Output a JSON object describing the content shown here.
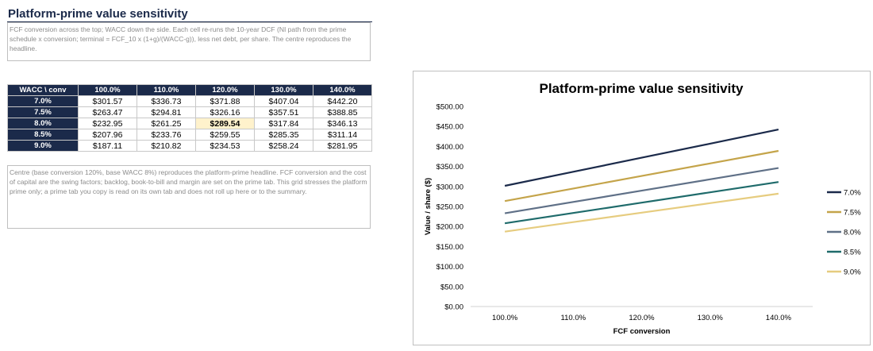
{
  "header": {
    "title": "Platform-prime value sensitivity",
    "note_top": "FCF conversion across the top; WACC down the side. Each cell re-runs the 10-year DCF (NI path from the prime schedule x conversion; terminal = FCF_10 x (1+g)/(WACC-g)), less net debt, per share. The centre reproduces the headline.",
    "note_bottom": "Centre (base conversion 120%, base WACC 8%) reproduces the platform-prime headline. FCF conversion and the cost of capital are the swing factors; backlog, book-to-bill and margin are set on the prime tab. This grid stresses the platform prime only; a prime tab you copy is read on its own tab and does not roll up here or to the summary."
  },
  "table": {
    "corner": "WACC \\ conv",
    "columns": [
      "100.0%",
      "110.0%",
      "120.0%",
      "130.0%",
      "140.0%"
    ],
    "rows": [
      {
        "wacc": "7.0%",
        "cells": [
          "$301.57",
          "$336.73",
          "$371.88",
          "$407.04",
          "$442.20"
        ]
      },
      {
        "wacc": "7.5%",
        "cells": [
          "$263.47",
          "$294.81",
          "$326.16",
          "$357.51",
          "$388.85"
        ]
      },
      {
        "wacc": "8.0%",
        "cells": [
          "$232.95",
          "$261.25",
          "$289.54",
          "$317.84",
          "$346.13"
        ]
      },
      {
        "wacc": "8.5%",
        "cells": [
          "$207.96",
          "$233.76",
          "$259.55",
          "$285.35",
          "$311.14"
        ]
      },
      {
        "wacc": "9.0%",
        "cells": [
          "$187.11",
          "$210.82",
          "$234.53",
          "$258.24",
          "$281.95"
        ]
      }
    ],
    "highlight": {
      "row": 2,
      "col": 2
    }
  },
  "chart_data": {
    "type": "line",
    "title": "Platform-prime value sensitivity",
    "xlabel": "FCF conversion",
    "ylabel": "Value / share ($)",
    "categories": [
      "100.0%",
      "110.0%",
      "120.0%",
      "130.0%",
      "140.0%"
    ],
    "ylim": [
      0,
      500
    ],
    "yticks": [
      "$0.00",
      "$50.00",
      "$100.00",
      "$150.00",
      "$200.00",
      "$250.00",
      "$300.00",
      "$350.00",
      "$400.00",
      "$450.00",
      "$500.00"
    ],
    "grid": false,
    "legend": "right",
    "series": [
      {
        "name": "7.0%",
        "color": "#1b2a4a",
        "values": [
          301.57,
          336.73,
          371.88,
          407.04,
          442.2
        ]
      },
      {
        "name": "7.5%",
        "color": "#c4a44a",
        "values": [
          263.47,
          294.81,
          326.16,
          357.51,
          388.85
        ]
      },
      {
        "name": "8.0%",
        "color": "#5f7087",
        "values": [
          232.95,
          261.25,
          289.54,
          317.84,
          346.13
        ]
      },
      {
        "name": "8.5%",
        "color": "#1f6b6b",
        "values": [
          207.96,
          233.76,
          259.55,
          285.35,
          311.14
        ]
      },
      {
        "name": "9.0%",
        "color": "#e6cc7f",
        "values": [
          187.11,
          210.82,
          234.53,
          258.24,
          281.95
        ]
      }
    ]
  }
}
